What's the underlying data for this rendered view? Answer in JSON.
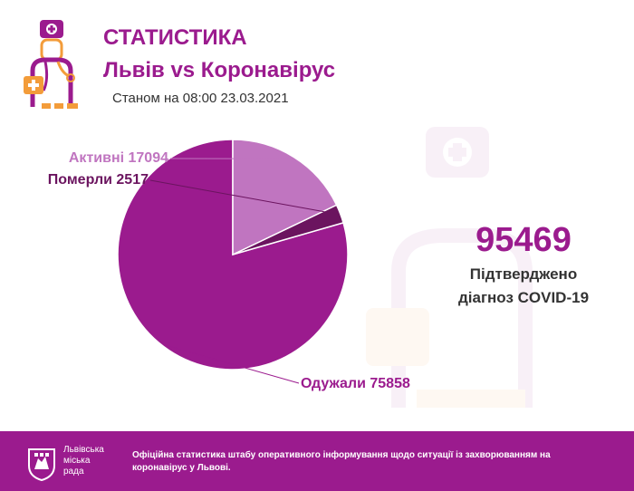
{
  "header": {
    "title": "СТАТИСТИКА",
    "subtitle": "Львів vs Коронавірус",
    "as_of": "Станом на 08:00 23.03.2021"
  },
  "summary": {
    "confirmed_value": "95469",
    "confirmed_caption_line1": "Підтверджено",
    "confirmed_caption_line2": "діагноз COVID-19"
  },
  "chart_data": {
    "type": "pie",
    "title": "",
    "slices": [
      {
        "name": "Одужали",
        "value": 75858,
        "label": "Одужали 75858",
        "color": "#9b1b8e",
        "label_color": "#9b1b8e"
      },
      {
        "name": "Померли",
        "value": 2517,
        "label": "Померли 2517",
        "color": "#6b145f",
        "label_color": "#6b145f"
      },
      {
        "name": "Активні",
        "value": 17094,
        "label": "Активні 17094",
        "color": "#c075c0",
        "label_color": "#c075c0"
      }
    ]
  },
  "footer": {
    "council_line1": "Львівська",
    "council_line2": "міська",
    "council_line3": "рада",
    "text": "Офіційна статистика штабу оперативного інформування щодо ситуації із захворюванням на коронавірус у Львові."
  },
  "icons": {
    "logo": "doctor-icon",
    "watermark": "doctor-watermark-icon",
    "crest": "city-crest-icon"
  },
  "colors": {
    "brand": "#9b1b8e",
    "accent": "#f39c3a"
  }
}
